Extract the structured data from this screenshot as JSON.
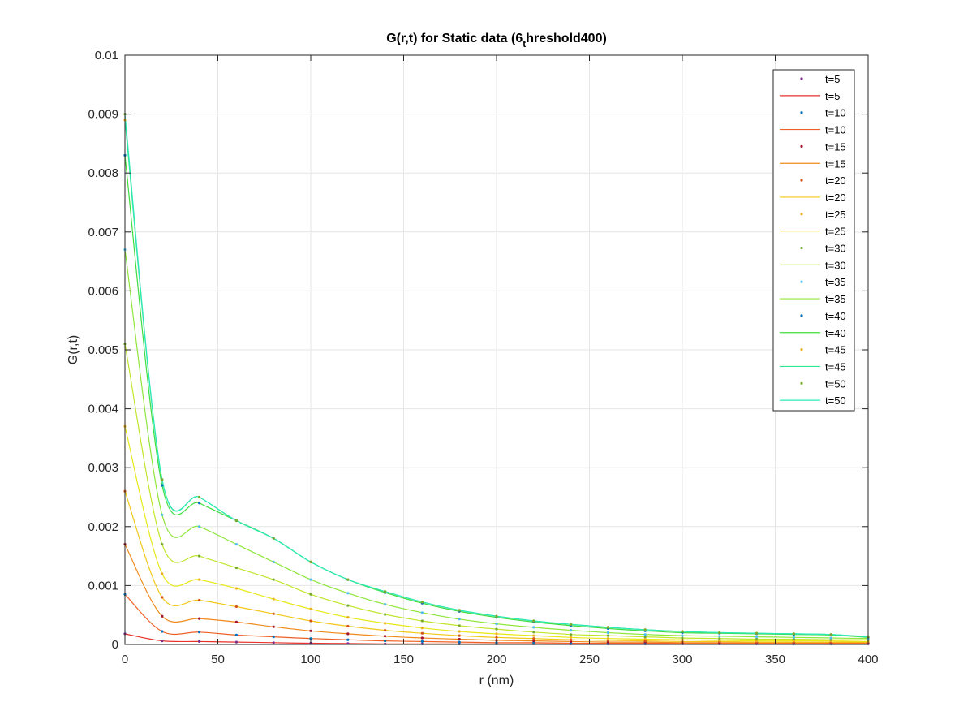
{
  "chart_data": {
    "type": "line",
    "title_main": "G(r,t)  for Static data (6",
    "title_sub": "t",
    "title_tail": "hreshold400)",
    "xlabel": "r (nm)",
    "ylabel": "G(r,t)",
    "xlim": [
      0,
      400
    ],
    "ylim": [
      0,
      0.01
    ],
    "xticks": [
      "0",
      "50",
      "100",
      "150",
      "200",
      "250",
      "300",
      "350",
      "400"
    ],
    "yticks": [
      "0",
      "0.001",
      "0.002",
      "0.003",
      "0.004",
      "0.005",
      "0.006",
      "0.007",
      "0.008",
      "0.009",
      "0.01"
    ],
    "grid": true,
    "legend_position": "top-right",
    "x": [
      0,
      20,
      40,
      60,
      80,
      100,
      120,
      140,
      160,
      180,
      200,
      220,
      240,
      260,
      280,
      300,
      320,
      340,
      360,
      380,
      400
    ],
    "series": [
      {
        "name": "t=5",
        "fit_color": "#e8322a",
        "marker_color": "#7e2f8e",
        "values": [
          0.00018,
          6e-05,
          5e-05,
          4e-05,
          3e-05,
          2e-05,
          1.5e-05,
          1e-05,
          1e-05,
          1e-05,
          1e-05,
          1e-05,
          1e-05,
          1e-05,
          1e-05,
          1e-05,
          1e-05,
          1e-05,
          1e-05,
          1e-05,
          1e-05
        ]
      },
      {
        "name": "t=10",
        "fit_color": "#ee6025",
        "marker_color": "#0072bd",
        "values": [
          0.00085,
          0.00022,
          0.00021,
          0.00016,
          0.00013,
          0.0001,
          8e-05,
          6e-05,
          5e-05,
          4e-05,
          3e-05,
          3e-05,
          2e-05,
          2e-05,
          2e-05,
          2e-05,
          2e-05,
          2e-05,
          2e-05,
          2e-05,
          2e-05
        ]
      },
      {
        "name": "t=15",
        "fit_color": "#f08a1c",
        "marker_color": "#a2142f",
        "values": [
          0.0017,
          0.00048,
          0.00044,
          0.00038,
          0.0003,
          0.00023,
          0.00018,
          0.00014,
          0.00011,
          9e-05,
          7e-05,
          6e-05,
          5e-05,
          4e-05,
          4e-05,
          3e-05,
          3e-05,
          3e-05,
          3e-05,
          3e-05,
          3e-05
        ]
      },
      {
        "name": "t=20",
        "fit_color": "#f2c818",
        "marker_color": "#d95319",
        "values": [
          0.0026,
          0.0008,
          0.00075,
          0.00064,
          0.00052,
          0.0004,
          0.00031,
          0.00024,
          0.00019,
          0.00015,
          0.00012,
          0.0001,
          8e-05,
          7e-05,
          6e-05,
          5e-05,
          5e-05,
          4e-05,
          4e-05,
          4e-05,
          4e-05
        ]
      },
      {
        "name": "t=25",
        "fit_color": "#e8e817",
        "marker_color": "#edb120",
        "values": [
          0.0037,
          0.0012,
          0.0011,
          0.00095,
          0.00077,
          0.0006,
          0.00046,
          0.00036,
          0.00028,
          0.00022,
          0.00018,
          0.00015,
          0.00012,
          0.0001,
          9e-05,
          8e-05,
          7e-05,
          6e-05,
          6e-05,
          6e-05,
          5e-05
        ]
      },
      {
        "name": "t=30",
        "fit_color": "#bfe62a",
        "marker_color": "#77ac30",
        "values": [
          0.0051,
          0.0017,
          0.0015,
          0.0013,
          0.0011,
          0.00085,
          0.00066,
          0.00051,
          0.0004,
          0.00032,
          0.00026,
          0.00021,
          0.00017,
          0.00015,
          0.00013,
          0.00011,
          0.0001,
          9e-05,
          9e-05,
          8e-05,
          8e-05
        ]
      },
      {
        "name": "t=35",
        "fit_color": "#8ee63a",
        "marker_color": "#4dbeee",
        "values": [
          0.0067,
          0.0022,
          0.002,
          0.0017,
          0.0014,
          0.0011,
          0.00087,
          0.00068,
          0.00054,
          0.00043,
          0.00035,
          0.00029,
          0.00024,
          0.0002,
          0.00017,
          0.00015,
          0.00014,
          0.00013,
          0.00012,
          0.00011,
          0.0001
        ]
      },
      {
        "name": "t=40",
        "fit_color": "#3fdc3f",
        "marker_color": "#0072bd",
        "values": [
          0.0083,
          0.0027,
          0.0024,
          0.0021,
          0.0018,
          0.0014,
          0.0011,
          0.00088,
          0.0007,
          0.00056,
          0.00046,
          0.00038,
          0.00032,
          0.00027,
          0.00023,
          0.0002,
          0.00019,
          0.00018,
          0.00017,
          0.00016,
          0.00012
        ]
      },
      {
        "name": "t=45",
        "fit_color": "#2ee890",
        "marker_color": "#edb120",
        "values": [
          0.0089,
          0.0028,
          0.0025,
          0.0021,
          0.0018,
          0.0014,
          0.0011,
          0.0009,
          0.00072,
          0.00058,
          0.00048,
          0.0004,
          0.00034,
          0.00029,
          0.00025,
          0.00022,
          0.0002,
          0.00019,
          0.00018,
          0.00017,
          0.00013
        ]
      },
      {
        "name": "t=50",
        "fit_color": "#2ee8b5",
        "marker_color": "#77ac30",
        "values": [
          0.009,
          0.0028,
          0.0025,
          0.0021,
          0.0018,
          0.0014,
          0.0011,
          0.0009,
          0.00072,
          0.00058,
          0.00048,
          0.0004,
          0.00034,
          0.00029,
          0.00025,
          0.00022,
          0.0002,
          0.00019,
          0.00018,
          0.00017,
          0.00013
        ]
      }
    ]
  }
}
